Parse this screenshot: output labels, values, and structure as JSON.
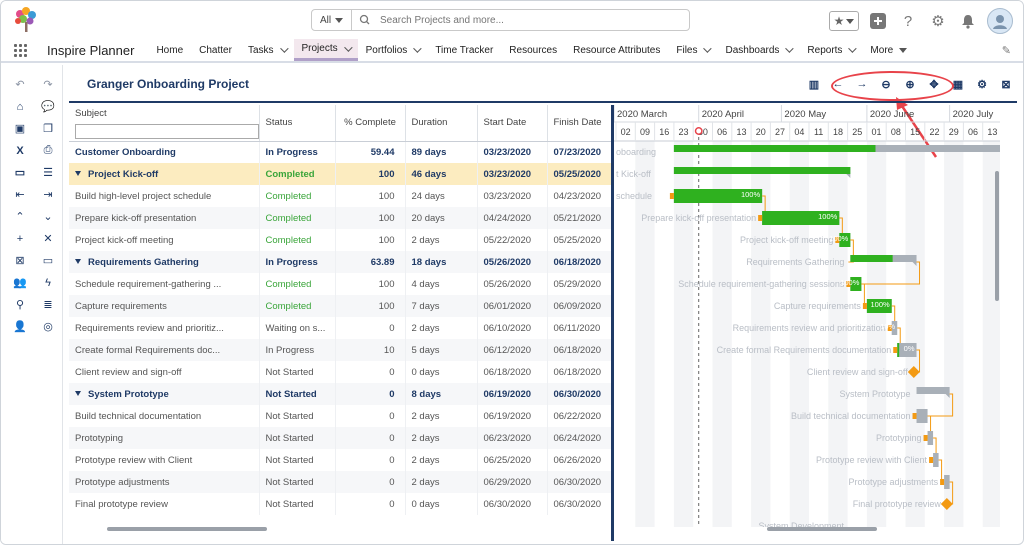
{
  "header": {
    "search_scope": "All",
    "search_placeholder": "Search Projects and more...",
    "icons": [
      "favorites-star-icon",
      "add-icon",
      "help-icon",
      "setup-gear-icon",
      "notification-bell-icon",
      "user-avatar"
    ]
  },
  "nav": {
    "app_name": "Inspire Planner",
    "items": [
      {
        "label": "Home",
        "menu": false
      },
      {
        "label": "Chatter",
        "menu": false
      },
      {
        "label": "Tasks",
        "menu": true
      },
      {
        "label": "Projects",
        "menu": true,
        "active": true
      },
      {
        "label": "Portfolios",
        "menu": true
      },
      {
        "label": "Time Tracker",
        "menu": false
      },
      {
        "label": "Resources",
        "menu": false
      },
      {
        "label": "Resource Attributes",
        "menu": false
      },
      {
        "label": "Files",
        "menu": true
      },
      {
        "label": "Dashboards",
        "menu": true
      },
      {
        "label": "Reports",
        "menu": true
      },
      {
        "label": "More",
        "menu": true
      }
    ]
  },
  "project": {
    "title": "Granger Onboarding Project"
  },
  "columns": {
    "subject": "Subject",
    "status": "Status",
    "pct": "% Complete",
    "duration": "Duration",
    "start": "Start Date",
    "finish": "Finish Date"
  },
  "rows": [
    {
      "subject": "Customer Onboarding",
      "status": "In Progress",
      "pct": "59.44",
      "duration": "89 days",
      "start": "03/23/2020",
      "finish": "07/23/2020",
      "level": 0
    },
    {
      "subject": "Project Kick-off",
      "status": "Completed",
      "pct": "100",
      "duration": "46 days",
      "start": "03/23/2020",
      "finish": "05/25/2020",
      "level": 1
    },
    {
      "subject": "Build high-level project schedule",
      "status": "Completed",
      "pct": "100",
      "duration": "24 days",
      "start": "03/23/2020",
      "finish": "04/23/2020",
      "level": 2
    },
    {
      "subject": "Prepare kick-off presentation",
      "status": "Completed",
      "pct": "100",
      "duration": "20 days",
      "start": "04/24/2020",
      "finish": "05/21/2020",
      "level": 2
    },
    {
      "subject": "Project kick-off meeting",
      "status": "Completed",
      "pct": "100",
      "duration": "2 days",
      "start": "05/22/2020",
      "finish": "05/25/2020",
      "level": 2
    },
    {
      "subject": "Requirements Gathering",
      "status": "In Progress",
      "pct": "63.89",
      "duration": "18 days",
      "start": "05/26/2020",
      "finish": "06/18/2020",
      "level": 1
    },
    {
      "subject": "Schedule requirement-gathering ...",
      "status": "Completed",
      "pct": "100",
      "duration": "4 days",
      "start": "05/26/2020",
      "finish": "05/29/2020",
      "level": 2
    },
    {
      "subject": "Capture requirements",
      "status": "Completed",
      "pct": "100",
      "duration": "7 days",
      "start": "06/01/2020",
      "finish": "06/09/2020",
      "level": 2
    },
    {
      "subject": "Requirements review and prioritiz...",
      "status": "Waiting on s...",
      "pct": "0",
      "duration": "2 days",
      "start": "06/10/2020",
      "finish": "06/11/2020",
      "level": 2
    },
    {
      "subject": "Create formal Requirements doc...",
      "status": "In Progress",
      "pct": "10",
      "duration": "5 days",
      "start": "06/12/2020",
      "finish": "06/18/2020",
      "level": 2
    },
    {
      "subject": "Client review and sign-off",
      "status": "Not Started",
      "pct": "0",
      "duration": "0 days",
      "start": "06/18/2020",
      "finish": "06/18/2020",
      "level": 2
    },
    {
      "subject": "System Prototype",
      "status": "Not Started",
      "pct": "0",
      "duration": "8 days",
      "start": "06/19/2020",
      "finish": "06/30/2020",
      "level": 1
    },
    {
      "subject": "Build technical documentation",
      "status": "Not Started",
      "pct": "0",
      "duration": "2 days",
      "start": "06/19/2020",
      "finish": "06/22/2020",
      "level": 2
    },
    {
      "subject": "Prototyping",
      "status": "Not Started",
      "pct": "0",
      "duration": "2 days",
      "start": "06/23/2020",
      "finish": "06/24/2020",
      "level": 2
    },
    {
      "subject": "Prototype review with Client",
      "status": "Not Started",
      "pct": "0",
      "duration": "2 days",
      "start": "06/25/2020",
      "finish": "06/26/2020",
      "level": 2
    },
    {
      "subject": "Prototype adjustments",
      "status": "Not Started",
      "pct": "0",
      "duration": "2 days",
      "start": "06/29/2020",
      "finish": "06/30/2020",
      "level": 2
    },
    {
      "subject": "Final prototype review",
      "status": "Not Started",
      "pct": "0",
      "duration": "0 days",
      "start": "06/30/2020",
      "finish": "06/30/2020",
      "level": 2
    }
  ],
  "gantt": {
    "months": [
      "2020 March",
      "2020 April",
      "2020 May",
      "2020 June",
      "2020 July"
    ],
    "days": [
      "02",
      "09",
      "16",
      "23",
      "30",
      "06",
      "13",
      "20",
      "27",
      "04",
      "11",
      "18",
      "25",
      "01",
      "08",
      "15",
      "22",
      "29",
      "06",
      "13"
    ],
    "bar_labels": [
      {
        "row": 0,
        "text": "oboarding"
      },
      {
        "row": 1,
        "text": "t Kick-off"
      },
      {
        "row": 2,
        "text": "schedule"
      },
      {
        "row": 3,
        "text": "Prepare kick-off presentation"
      },
      {
        "row": 4,
        "text": "Project kick-off meeting"
      },
      {
        "row": 5,
        "text": "Requirements Gathering"
      },
      {
        "row": 6,
        "text": "Schedule requirement-gathering sessions"
      },
      {
        "row": 7,
        "text": "Capture requirements"
      },
      {
        "row": 8,
        "text": "Requirements review and prioritization"
      },
      {
        "row": 9,
        "text": "Create formal Requirements documentation"
      },
      {
        "row": 10,
        "text": "Client review and sign-off"
      },
      {
        "row": 11,
        "text": "System Prototype"
      },
      {
        "row": 12,
        "text": "Build technical documentation"
      },
      {
        "row": 13,
        "text": "Prototyping"
      },
      {
        "row": 14,
        "text": "Prototype review with Client"
      },
      {
        "row": 15,
        "text": "Prototype adjustments"
      },
      {
        "row": 16,
        "text": "Final prototype review"
      },
      {
        "row": 17,
        "text": "System Development"
      }
    ],
    "pct_labels": [
      "100%",
      "100%",
      "100%",
      "100%",
      "100%",
      "10%",
      "0%"
    ],
    "colors": {
      "done": "#2fb11f",
      "remaining": "#a9b0b8",
      "milestone": "#f39a13",
      "link": "#f39a13",
      "today": "#e8434a"
    }
  },
  "toolbar_icons": [
    "columns-icon",
    "arrow-left-icon",
    "arrow-right-icon",
    "zoom-out-icon",
    "zoom-in-icon",
    "fit-to-screen-icon",
    "calendar-icon",
    "settings-icon",
    "close-icon"
  ],
  "left_toolbar_icons": [
    "undo-icon",
    "redo-icon",
    "home-icon",
    "comment-icon",
    "save-icon",
    "copy-icon",
    "excel-icon",
    "print-icon",
    "folder-icon",
    "list-icon",
    "outdent-icon",
    "indent-icon",
    "collapse-icon",
    "expand-icon",
    "add-task-icon",
    "delete-icon",
    "close-x-icon",
    "monitor-icon",
    "team-icon",
    "lightning-icon",
    "pin-icon",
    "list-view-icon",
    "add-user-icon",
    "compass-icon"
  ]
}
